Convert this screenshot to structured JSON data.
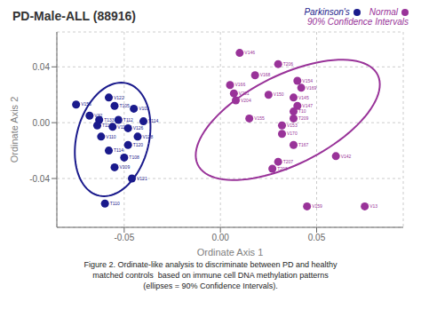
{
  "chart_data": {
    "type": "scatter",
    "title": "PD-Male-ALL (88916)",
    "x_label": "Ordinate Axis 1",
    "y_label": "Ordinate Axis 2",
    "xlim": [
      -0.085,
      0.095
    ],
    "ylim": [
      -0.075,
      0.065
    ],
    "xticks": [
      -0.05,
      {
        "value": 0,
        "label": "0.00"
      },
      0.05
    ],
    "yticks": [
      -0.04,
      {
        "value": 0,
        "label": "0.00"
      },
      0.04
    ],
    "grid": true,
    "legend": "upper right",
    "annotations": [
      "90% Confidence Intervals"
    ],
    "caption": [
      "Figure 2. Ordinate-like analysis to discriminate between PD and healthy",
      "matched controls  based on immune cell DNA methylation patterns",
      "(ellipses = 90% Confidence Intervals)."
    ],
    "series": [
      {
        "name": "Parkinson's",
        "color": "#1a1a8c",
        "x": [
          -0.075,
          -0.058,
          -0.055,
          -0.045,
          -0.068,
          -0.063,
          -0.053,
          -0.04,
          -0.064,
          -0.056,
          -0.048,
          -0.062,
          -0.043,
          -0.048,
          -0.058,
          -0.05,
          -0.055,
          -0.046,
          -0.06
        ],
        "values": [
          0.013,
          0.018,
          0.012,
          0.01,
          0.005,
          0.002,
          0.002,
          0.001,
          -0.002,
          -0.003,
          -0.004,
          -0.01,
          -0.01,
          -0.016,
          -0.02,
          -0.025,
          -0.032,
          -0.04,
          -0.058
        ],
        "labels": [
          "V156",
          "V122",
          "T105",
          "V103",
          "V32",
          "T133",
          "T112",
          "V114",
          "T115",
          "V11",
          "V126",
          "V110",
          "V128",
          "T120",
          "T114",
          "T108",
          "V109",
          "V121",
          "T110"
        ],
        "ellipse": {
          "x_center": -0.056,
          "y_center": -0.012,
          "width": 0.038,
          "height": 0.082,
          "angle": -8
        }
      },
      {
        "name": "Normal",
        "color": "#993399",
        "x": [
          0.01,
          0.03,
          0.018,
          0.04,
          0.005,
          0.042,
          0.007,
          0.025,
          0.008,
          0.038,
          0.04,
          0.038,
          0.015,
          0.038,
          0.032,
          0.032,
          0.038,
          0.03,
          0.06,
          0.027,
          0.045,
          0.075
        ],
        "values": [
          0.05,
          0.042,
          0.034,
          0.03,
          0.027,
          0.025,
          0.021,
          0.02,
          0.016,
          0.018,
          0.012,
          0.008,
          0.003,
          0.003,
          -0.002,
          -0.008,
          -0.016,
          -0.028,
          -0.024,
          -0.033,
          -0.06,
          -0.06
        ],
        "labels": [
          "V146",
          "T206",
          "V168",
          "V154",
          "V166",
          "V169",
          "V201",
          "V150",
          "V204",
          "V145",
          "V147",
          "T10",
          "V155",
          "T209",
          "V153",
          "V170",
          "T167",
          "T207",
          "V142",
          "T203",
          "V159",
          "V13"
        ],
        "ellipse": {
          "x_center": 0.035,
          "y_center": 0.002,
          "width": 0.058,
          "height": 0.115,
          "angle": -50
        }
      }
    ]
  }
}
